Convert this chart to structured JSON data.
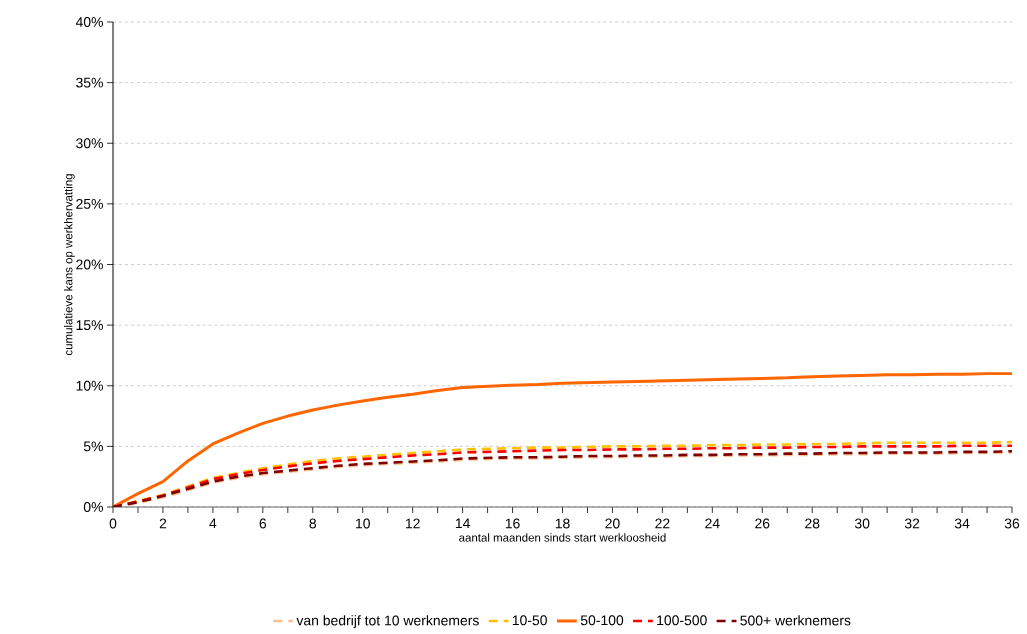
{
  "chart_data": {
    "type": "line",
    "xlabel": "aantal maanden sinds start werkloosheid",
    "ylabel": "cumulatieve kans op werkhervatting",
    "x": [
      0,
      1,
      2,
      3,
      4,
      5,
      6,
      7,
      8,
      9,
      10,
      11,
      12,
      13,
      14,
      15,
      16,
      17,
      18,
      19,
      20,
      21,
      22,
      23,
      24,
      25,
      26,
      27,
      28,
      29,
      30,
      31,
      32,
      33,
      34,
      35,
      36
    ],
    "series": [
      {
        "name": "van bedrijf tot 10 werknemers",
        "color": "#fac090",
        "line_style": "dashed",
        "values": [
          0,
          0.35,
          0.8,
          1.4,
          2.0,
          2.4,
          2.7,
          2.9,
          3.1,
          3.3,
          3.45,
          3.55,
          3.65,
          3.75,
          3.9,
          3.95,
          4.0,
          4.0,
          4.05,
          4.1,
          4.1,
          4.15,
          4.15,
          4.2,
          4.2,
          4.25,
          4.25,
          4.3,
          4.3,
          4.35,
          4.35,
          4.4,
          4.4,
          4.4,
          4.45,
          4.45,
          4.5
        ]
      },
      {
        "name": "10-50",
        "color": "#ffc000",
        "line_style": "dashed",
        "values": [
          0,
          0.5,
          1.0,
          1.7,
          2.4,
          2.8,
          3.2,
          3.5,
          3.8,
          4.0,
          4.15,
          4.3,
          4.45,
          4.6,
          4.75,
          4.8,
          4.85,
          4.9,
          4.9,
          4.95,
          5.0,
          5.0,
          5.05,
          5.05,
          5.1,
          5.1,
          5.15,
          5.15,
          5.2,
          5.2,
          5.25,
          5.3,
          5.3,
          5.3,
          5.3,
          5.3,
          5.35
        ]
      },
      {
        "name": "50-100",
        "color": "#ff6600",
        "line_style": "solid",
        "values": [
          0,
          1.1,
          2.1,
          3.8,
          5.2,
          6.1,
          6.9,
          7.5,
          8.0,
          8.4,
          8.75,
          9.05,
          9.3,
          9.6,
          9.85,
          9.95,
          10.05,
          10.1,
          10.2,
          10.25,
          10.3,
          10.35,
          10.4,
          10.45,
          10.5,
          10.55,
          10.6,
          10.65,
          10.75,
          10.8,
          10.85,
          10.9,
          10.9,
          10.95,
          10.95,
          11.0,
          11.0
        ]
      },
      {
        "name": "100-500",
        "color": "#ff0000",
        "line_style": "dashed",
        "values": [
          0,
          0.45,
          0.95,
          1.6,
          2.3,
          2.7,
          3.05,
          3.35,
          3.6,
          3.8,
          3.95,
          4.1,
          4.25,
          4.35,
          4.5,
          4.55,
          4.6,
          4.65,
          4.7,
          4.7,
          4.75,
          4.75,
          4.8,
          4.8,
          4.85,
          4.85,
          4.9,
          4.9,
          4.95,
          4.95,
          5.0,
          5.0,
          5.0,
          5.0,
          5.05,
          5.05,
          5.05
        ]
      },
      {
        "name": "500+ werknemers",
        "color": "#7f0000",
        "line_style": "dashed",
        "values": [
          0,
          0.4,
          0.9,
          1.5,
          2.1,
          2.5,
          2.8,
          3.0,
          3.2,
          3.4,
          3.55,
          3.65,
          3.75,
          3.85,
          4.0,
          4.05,
          4.1,
          4.1,
          4.15,
          4.2,
          4.2,
          4.25,
          4.25,
          4.3,
          4.3,
          4.35,
          4.35,
          4.4,
          4.4,
          4.45,
          4.45,
          4.5,
          4.5,
          4.5,
          4.55,
          4.55,
          4.6
        ]
      }
    ],
    "xlim": [
      0,
      36
    ],
    "xticks": [
      0,
      {
        "value": 1,
        "label": null
      },
      2,
      {
        "value": 3,
        "label": null
      },
      4,
      {
        "value": 5,
        "label": null
      },
      6,
      {
        "value": 7,
        "label": null
      },
      8,
      {
        "value": 9,
        "label": null
      },
      10,
      {
        "value": 11,
        "label": null
      },
      12,
      {
        "value": 13,
        "label": null
      },
      14,
      {
        "value": 15,
        "label": null
      },
      16,
      {
        "value": 17,
        "label": null
      },
      18,
      {
        "value": 19,
        "label": null
      },
      20,
      {
        "value": 21,
        "label": null
      },
      22,
      {
        "value": 23,
        "label": null
      },
      24,
      {
        "value": 25,
        "label": null
      },
      26,
      {
        "value": 27,
        "label": null
      },
      28,
      {
        "value": 29,
        "label": null
      },
      30,
      {
        "value": 31,
        "label": null
      },
      32,
      {
        "value": 33,
        "label": null
      },
      34,
      {
        "value": 35,
        "label": null
      },
      36
    ],
    "ylim": [
      0,
      40
    ],
    "yticks": [
      {
        "value": 0,
        "label": "0%"
      },
      {
        "value": 5,
        "label": "5%"
      },
      {
        "value": 10,
        "label": "10%"
      },
      {
        "value": 15,
        "label": "15%"
      },
      {
        "value": 20,
        "label": "20%"
      },
      {
        "value": 25,
        "label": "25%"
      },
      {
        "value": 30,
        "label": "30%"
      },
      {
        "value": 35,
        "label": "35%"
      },
      {
        "value": 40,
        "label": "40%"
      }
    ],
    "grid": "y",
    "legend": "bottom",
    "marker": "none"
  }
}
